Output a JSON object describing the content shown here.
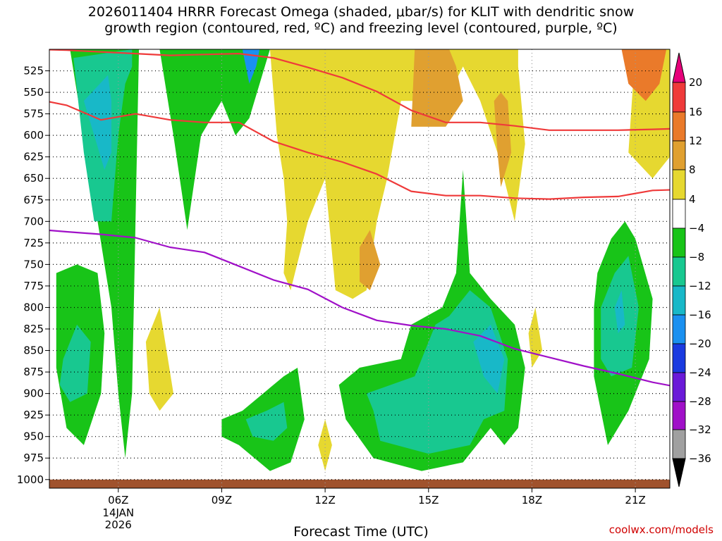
{
  "title": {
    "line1": "2026011404 HRRR Forecast Omega (shaded, μbar/s) for KLIT with dendritic snow",
    "line2": "growth region (contoured, red, ºC) and freezing level (contoured, purple, ºC)"
  },
  "xlabel": "Forecast Time (UTC)",
  "credit": "coolwx.com/models",
  "chart_data": {
    "type": "heatmap",
    "title": "2026011404 HRRR Forecast Omega (shaded, μbar/s) for KLIT with dendritic snow growth region (contoured, red, ºC) and freezing level (contoured, purple, ºC)",
    "xlabel": "Forecast Time (UTC)",
    "ylabel": "",
    "x_ticks": [
      {
        "label": "06Z",
        "hour": 6,
        "sub": [
          "14JAN",
          "2026"
        ]
      },
      {
        "label": "09Z",
        "hour": 9
      },
      {
        "label": "12Z",
        "hour": 12
      },
      {
        "label": "15Z",
        "hour": 15
      },
      {
        "label": "18Z",
        "hour": 18
      },
      {
        "label": "21Z",
        "hour": 21
      }
    ],
    "xlim_hours": [
      4,
      22
    ],
    "y_ticks": [
      525,
      550,
      575,
      600,
      625,
      650,
      675,
      700,
      725,
      750,
      775,
      800,
      825,
      850,
      875,
      900,
      925,
      950,
      975,
      1000
    ],
    "ylim_hPa": [
      500,
      1010
    ],
    "grid": true,
    "colorbar": {
      "labels": [
        "20",
        "16",
        "12",
        "8",
        "4",
        "−4",
        "−8",
        "−12",
        "−16",
        "−20",
        "−24",
        "−28",
        "−32",
        "−36"
      ],
      "bins": [
        {
          "range": "> 20",
          "color": "#e6007a"
        },
        {
          "range": "16 to 20",
          "color": "#ef3a3a"
        },
        {
          "range": "12 to 16",
          "color": "#ea7a2a"
        },
        {
          "range": "8 to 12",
          "color": "#e0a030"
        },
        {
          "range": "4 to 8",
          "color": "#e6d830"
        },
        {
          "range": "-4 to 4",
          "color": "#ffffff"
        },
        {
          "range": "-8 to -4",
          "color": "#18c418"
        },
        {
          "range": "-12 to -8",
          "color": "#18c890"
        },
        {
          "range": "-16 to -12",
          "color": "#18b8c8"
        },
        {
          "range": "-20 to -16",
          "color": "#1a90f0"
        },
        {
          "range": "-24 to -20",
          "color": "#1a3ae0"
        },
        {
          "range": "-28 to -24",
          "color": "#6a1ad8"
        },
        {
          "range": "-32 to -28",
          "color": "#a010c8"
        },
        {
          "range": "-36 to -32",
          "color": "#a0a0a0"
        },
        {
          "range": "< -36",
          "color": "#000000"
        }
      ]
    },
    "series": [
      {
        "name": "dendritic snow growth region",
        "color": "#ef3a3a",
        "lines": [
          [
            [
              3.6,
              500
            ],
            [
              4.5,
              501
            ],
            [
              5.5,
              503
            ],
            [
              6.5,
              505
            ],
            [
              7.5,
              507
            ],
            [
              8.5,
              506
            ],
            [
              9.5,
              505
            ],
            [
              10.5,
              510
            ],
            [
              11.5,
              521
            ],
            [
              12.5,
              533
            ],
            [
              13.5,
              549
            ],
            [
              14.5,
              571
            ],
            [
              15.5,
              585
            ],
            [
              16.5,
              585
            ],
            [
              17.5,
              589
            ],
            [
              18.5,
              594
            ],
            [
              19.5,
              594
            ],
            [
              20.5,
              594
            ],
            [
              21.5,
              593
            ],
            [
              22.3,
              592
            ]
          ],
          [
            [
              3.0,
              553
            ],
            [
              4.5,
              565
            ],
            [
              5.5,
              582
            ],
            [
              6.5,
              575
            ],
            [
              7.5,
              582
            ],
            [
              8.5,
              585
            ],
            [
              9.5,
              585
            ],
            [
              10.5,
              607
            ],
            [
              11.5,
              620
            ],
            [
              12.5,
              631
            ],
            [
              13.5,
              645
            ],
            [
              14.5,
              665
            ],
            [
              15.5,
              670
            ],
            [
              16.5,
              670
            ],
            [
              17.5,
              673
            ],
            [
              18.5,
              674
            ],
            [
              19.5,
              672
            ],
            [
              20.5,
              671
            ],
            [
              21.5,
              664
            ],
            [
              22.3,
              663
            ]
          ]
        ]
      },
      {
        "name": "freezing level",
        "color": "#a010c8",
        "points": [
          [
            3.0,
            707
          ],
          [
            4.5,
            712
          ],
          [
            5.5,
            715
          ],
          [
            6.5,
            719
          ],
          [
            7.5,
            730
          ],
          [
            8.5,
            736
          ],
          [
            9.5,
            752
          ],
          [
            10.5,
            768
          ],
          [
            11.5,
            779
          ],
          [
            12.5,
            800
          ],
          [
            13.5,
            815
          ],
          [
            14.5,
            821
          ],
          [
            15.5,
            825
          ],
          [
            16.5,
            833
          ],
          [
            17.5,
            848
          ],
          [
            18.5,
            858
          ],
          [
            19.5,
            868
          ],
          [
            20.5,
            877
          ],
          [
            21.5,
            887
          ],
          [
            22.3,
            893
          ]
        ]
      }
    ],
    "omega_regions": [
      {
        "bin": "-8 to -4",
        "points": [
          [
            4.6,
            500
          ],
          [
            5.0,
            600
          ],
          [
            5.6,
            750
          ],
          [
            5.8,
            800
          ],
          [
            6.0,
            900
          ],
          [
            6.2,
            975
          ],
          [
            6.4,
            900
          ],
          [
            6.5,
            700
          ],
          [
            6.6,
            500
          ]
        ]
      },
      {
        "bin": "-8 to -4",
        "points": [
          [
            7.2,
            500
          ],
          [
            7.6,
            600
          ],
          [
            8.0,
            710
          ],
          [
            8.4,
            600
          ],
          [
            9.0,
            560
          ],
          [
            9.4,
            600
          ],
          [
            9.8,
            580
          ],
          [
            10.4,
            500
          ]
        ]
      },
      {
        "bin": "-12 to -8",
        "points": [
          [
            4.7,
            510
          ],
          [
            5.0,
            620
          ],
          [
            5.3,
            700
          ],
          [
            5.8,
            700
          ],
          [
            6.0,
            600
          ],
          [
            6.2,
            540
          ],
          [
            6.4,
            520
          ],
          [
            6.4,
            500
          ]
        ]
      },
      {
        "bin": "-16 to -12",
        "points": [
          [
            5.0,
            560
          ],
          [
            5.6,
            640
          ],
          [
            5.8,
            620
          ],
          [
            5.8,
            560
          ],
          [
            5.7,
            530
          ]
        ]
      },
      {
        "bin": "-20 to -16",
        "points": [
          [
            9.6,
            500
          ],
          [
            9.8,
            540
          ],
          [
            10.0,
            520
          ],
          [
            10.1,
            500
          ]
        ]
      },
      {
        "bin": "4 to 8",
        "points": [
          [
            10.4,
            500
          ],
          [
            10.6,
            600
          ],
          [
            10.8,
            650
          ],
          [
            10.9,
            700
          ],
          [
            10.8,
            760
          ],
          [
            11.0,
            780
          ],
          [
            11.5,
            700
          ],
          [
            12.0,
            650
          ],
          [
            12.3,
            780
          ],
          [
            12.8,
            790
          ],
          [
            13.2,
            780
          ],
          [
            13.5,
            700
          ],
          [
            13.8,
            650
          ],
          [
            14.2,
            560
          ],
          [
            15.5,
            560
          ],
          [
            16.0,
            520
          ],
          [
            16.5,
            560
          ],
          [
            17.0,
            620
          ],
          [
            17.5,
            700
          ],
          [
            17.8,
            610
          ],
          [
            17.6,
            520
          ],
          [
            17.6,
            500
          ]
        ]
      },
      {
        "bin": "4 to 8",
        "points": [
          [
            21.0,
            500
          ],
          [
            20.8,
            620
          ],
          [
            21.5,
            650
          ],
          [
            22.1,
            620
          ],
          [
            22.3,
            500
          ]
        ]
      },
      {
        "bin": "4 to 8",
        "points": [
          [
            6.8,
            840
          ],
          [
            7.2,
            800
          ],
          [
            7.6,
            900
          ],
          [
            7.2,
            920
          ],
          [
            6.9,
            900
          ]
        ]
      },
      {
        "bin": "4 to 8",
        "points": [
          [
            17.9,
            830
          ],
          [
            18.1,
            800
          ],
          [
            18.3,
            850
          ],
          [
            18.0,
            870
          ]
        ]
      },
      {
        "bin": "4 to 8",
        "points": [
          [
            11.8,
            960
          ],
          [
            12.0,
            930
          ],
          [
            12.2,
            960
          ],
          [
            12.0,
            990
          ]
        ]
      },
      {
        "bin": "8 to 12",
        "points": [
          [
            14.6,
            500
          ],
          [
            14.5,
            590
          ],
          [
            15.5,
            590
          ],
          [
            16.0,
            560
          ],
          [
            15.8,
            520
          ],
          [
            15.6,
            500
          ]
        ]
      },
      {
        "bin": "8 to 12",
        "points": [
          [
            16.9,
            560
          ],
          [
            17.0,
            620
          ],
          [
            17.1,
            660
          ],
          [
            17.4,
            620
          ],
          [
            17.3,
            560
          ],
          [
            17.1,
            550
          ]
        ]
      },
      {
        "bin": "8 to 12",
        "points": [
          [
            13.0,
            730
          ],
          [
            13.3,
            710
          ],
          [
            13.6,
            750
          ],
          [
            13.3,
            780
          ],
          [
            13.0,
            770
          ]
        ]
      },
      {
        "bin": "12 to 16",
        "points": [
          [
            20.6,
            500
          ],
          [
            20.8,
            540
          ],
          [
            21.3,
            560
          ],
          [
            21.7,
            540
          ],
          [
            21.9,
            500
          ]
        ]
      },
      {
        "bin": "-8 to -4",
        "points": [
          [
            12.4,
            890
          ],
          [
            13.0,
            870
          ],
          [
            14.2,
            860
          ],
          [
            14.5,
            820
          ],
          [
            15.4,
            800
          ],
          [
            15.8,
            760
          ],
          [
            16.0,
            640
          ],
          [
            16.2,
            760
          ],
          [
            16.8,
            790
          ],
          [
            17.5,
            820
          ],
          [
            17.8,
            870
          ],
          [
            17.6,
            940
          ],
          [
            17.2,
            960
          ],
          [
            16.8,
            940
          ],
          [
            16.0,
            980
          ],
          [
            14.8,
            990
          ],
          [
            13.4,
            975
          ],
          [
            12.6,
            930
          ]
        ]
      },
      {
        "bin": "-12 to -8",
        "points": [
          [
            13.2,
            900
          ],
          [
            14.6,
            880
          ],
          [
            15.2,
            820
          ],
          [
            15.6,
            810
          ],
          [
            16.2,
            780
          ],
          [
            16.8,
            800
          ],
          [
            17.3,
            860
          ],
          [
            17.2,
            920
          ],
          [
            16.6,
            930
          ],
          [
            16.2,
            960
          ],
          [
            15.0,
            970
          ],
          [
            13.6,
            955
          ],
          [
            13.4,
            920
          ]
        ]
      },
      {
        "bin": "-16 to -12",
        "points": [
          [
            16.3,
            840
          ],
          [
            16.8,
            820
          ],
          [
            17.2,
            860
          ],
          [
            17.0,
            900
          ],
          [
            16.6,
            880
          ]
        ]
      },
      {
        "bin": "-8 to -4",
        "points": [
          [
            9.0,
            930
          ],
          [
            9.6,
            920
          ],
          [
            10.8,
            880
          ],
          [
            11.2,
            870
          ],
          [
            11.4,
            930
          ],
          [
            11.0,
            980
          ],
          [
            10.4,
            990
          ],
          [
            9.5,
            960
          ],
          [
            9.0,
            950
          ]
        ]
      },
      {
        "bin": "-12 to -8",
        "points": [
          [
            9.7,
            930
          ],
          [
            10.3,
            920
          ],
          [
            10.8,
            910
          ],
          [
            10.9,
            940
          ],
          [
            10.5,
            955
          ],
          [
            9.9,
            950
          ]
        ]
      },
      {
        "bin": "-8 to -4",
        "points": [
          [
            19.8,
            800
          ],
          [
            19.9,
            760
          ],
          [
            20.3,
            720
          ],
          [
            20.7,
            700
          ],
          [
            21.0,
            720
          ],
          [
            21.5,
            790
          ],
          [
            21.4,
            860
          ],
          [
            20.8,
            920
          ],
          [
            20.2,
            960
          ],
          [
            19.8,
            880
          ]
        ]
      },
      {
        "bin": "-12 to -8",
        "points": [
          [
            20.0,
            800
          ],
          [
            20.4,
            760
          ],
          [
            20.8,
            740
          ],
          [
            21.1,
            800
          ],
          [
            20.9,
            870
          ],
          [
            20.3,
            880
          ],
          [
            20.0,
            860
          ]
        ]
      },
      {
        "bin": "-16 to -12",
        "points": [
          [
            20.4,
            800
          ],
          [
            20.6,
            780
          ],
          [
            20.7,
            820
          ],
          [
            20.5,
            830
          ]
        ]
      },
      {
        "bin": "-8 to -4",
        "points": [
          [
            4.2,
            760
          ],
          [
            4.8,
            750
          ],
          [
            5.4,
            760
          ],
          [
            5.6,
            830
          ],
          [
            5.5,
            900
          ],
          [
            5.0,
            960
          ],
          [
            4.5,
            940
          ],
          [
            4.2,
            870
          ]
        ]
      },
      {
        "bin": "-12 to -8",
        "points": [
          [
            4.4,
            860
          ],
          [
            4.8,
            820
          ],
          [
            5.2,
            840
          ],
          [
            5.1,
            900
          ],
          [
            4.6,
            910
          ],
          [
            4.3,
            890
          ]
        ]
      }
    ]
  }
}
